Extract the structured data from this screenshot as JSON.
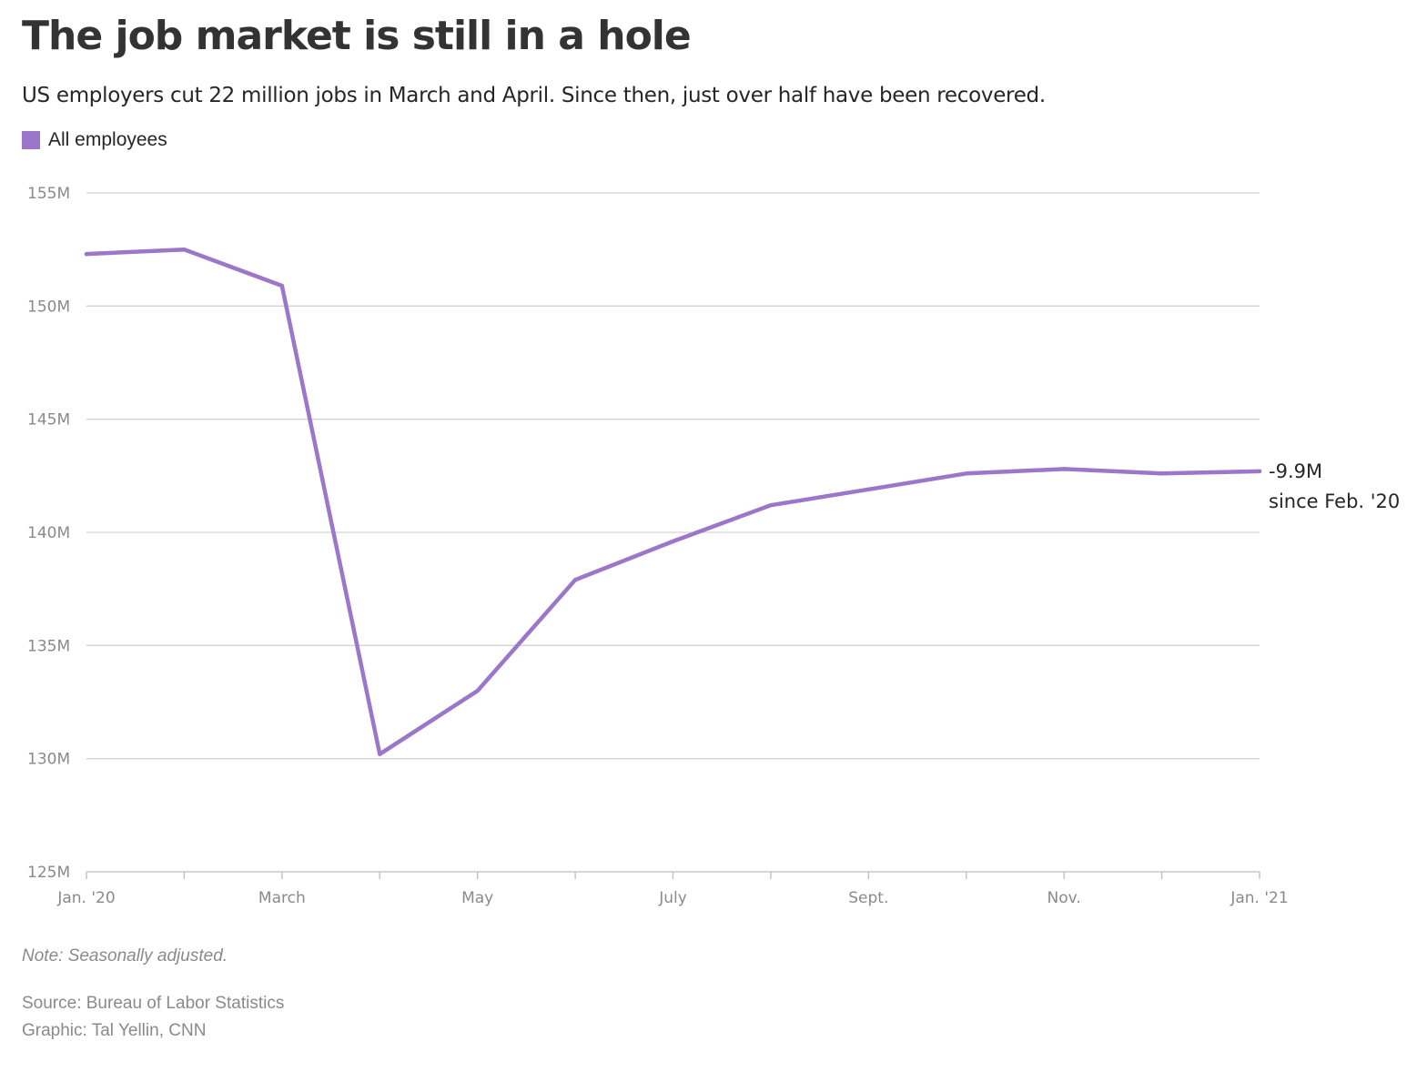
{
  "header": {
    "title": "The job market is still in a hole",
    "subtitle": "US employers cut 22 million jobs in March and April. Since then, just over half have been recovered."
  },
  "legend": {
    "label": "All employees",
    "color": "#9b76c9"
  },
  "chart_data": {
    "type": "line",
    "series": [
      {
        "name": "All employees",
        "color": "#9b76c9",
        "x": [
          "2020-01",
          "2020-02",
          "2020-03",
          "2020-04",
          "2020-05",
          "2020-06",
          "2020-07",
          "2020-08",
          "2020-09",
          "2020-10",
          "2020-11",
          "2020-12",
          "2021-01"
        ],
        "values": [
          152.3,
          152.5,
          150.9,
          130.2,
          133.0,
          137.9,
          139.6,
          141.2,
          141.9,
          142.6,
          142.8,
          142.6,
          142.7
        ]
      }
    ],
    "ylim": [
      125,
      155
    ],
    "yticks": [
      125,
      130,
      135,
      140,
      145,
      150,
      155
    ],
    "ytick_labels": [
      "125M",
      "130M",
      "135M",
      "140M",
      "145M",
      "150M",
      "155M"
    ],
    "xticks": [
      "2020-01",
      "2020-02",
      "2020-03",
      "2020-04",
      "2020-05",
      "2020-06",
      "2020-07",
      "2020-08",
      "2020-09",
      "2020-10",
      "2020-11",
      "2020-12",
      "2021-01"
    ],
    "xtick_labels": [
      "Jan. '20",
      "",
      "March",
      "",
      "May",
      "",
      "July",
      "",
      "Sept.",
      "",
      "Nov.",
      "",
      "Jan. '21"
    ],
    "grid": true,
    "gridline_color": "#d3d3d3",
    "annotation": {
      "value": "-9.9M",
      "text": "since Feb. '20"
    }
  },
  "footer": {
    "note": "Note: Seasonally adjusted.",
    "source": "Source: Bureau of Labor Statistics",
    "credit": "Graphic: Tal Yellin, CNN"
  }
}
